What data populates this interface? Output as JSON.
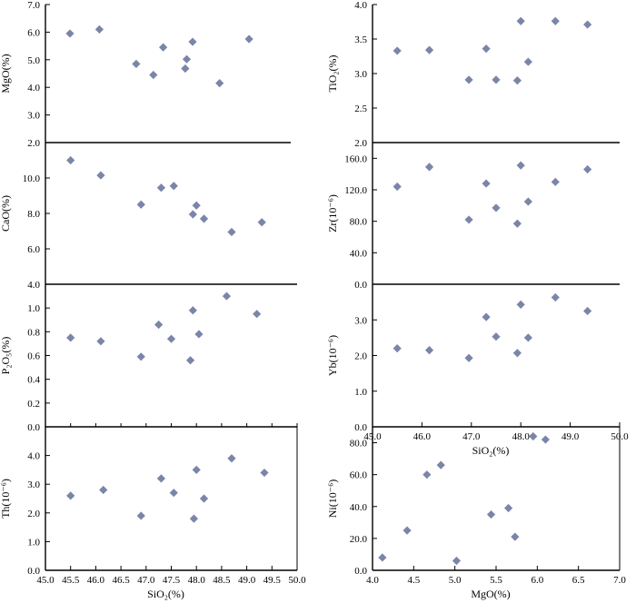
{
  "colors": {
    "marker": "#7a86a8",
    "axis": "#000000",
    "background": "#ffffff"
  },
  "chart_data": [
    {
      "id": "mgo-sio2",
      "type": "scatter",
      "ylabel": "MgO(%)",
      "xlabel": "",
      "xlim": [
        45.0,
        50.0
      ],
      "ylim": [
        2.0,
        7.0
      ],
      "xticks": [],
      "yticks": [
        "2.0",
        "3.0",
        "4.0",
        "5.0",
        "6.0",
        "7.0"
      ],
      "x": [
        45.5,
        46.1,
        46.85,
        47.2,
        47.4,
        47.85,
        47.88,
        48.0,
        48.55,
        49.15
      ],
      "y": [
        5.95,
        6.1,
        4.85,
        4.45,
        5.45,
        4.68,
        5.02,
        5.65,
        4.15,
        5.75
      ]
    },
    {
      "id": "tio2-sio2",
      "type": "scatter",
      "ylabel": "TiO₂(%)",
      "xlabel": "",
      "xlim": [
        45.0,
        50.0
      ],
      "ylim": [
        2.0,
        4.0
      ],
      "xticks": [],
      "yticks": [
        "2.0",
        "2.5",
        "3.0",
        "3.5",
        "4.0"
      ],
      "x": [
        45.5,
        46.15,
        46.95,
        47.3,
        47.5,
        47.93,
        48.0,
        48.15,
        48.7,
        49.35
      ],
      "y": [
        3.33,
        3.34,
        2.91,
        3.36,
        2.91,
        2.9,
        3.76,
        3.17,
        3.76,
        3.71
      ]
    },
    {
      "id": "cao-sio2",
      "type": "scatter",
      "ylabel": "CaO(%)",
      "xlabel": "",
      "xlim": [
        45.0,
        50.0
      ],
      "ylim": [
        4.0,
        12.0
      ],
      "xticks": [],
      "yticks": [
        "4.0",
        "6.0",
        "8.0",
        "10.0"
      ],
      "x": [
        45.5,
        46.1,
        46.9,
        47.3,
        47.55,
        47.93,
        48.0,
        48.15,
        48.7,
        49.3
      ],
      "y": [
        11.0,
        10.15,
        8.5,
        9.45,
        9.55,
        7.95,
        8.45,
        7.7,
        6.95,
        7.5
      ]
    },
    {
      "id": "zr-sio2",
      "type": "scatter",
      "ylabel": "Zr(10⁻⁶)",
      "xlabel": "",
      "xlim": [
        45.0,
        50.0
      ],
      "ylim": [
        0.0,
        180.0
      ],
      "xticks": [],
      "yticks": [
        "0.0",
        "40.0",
        "80.0",
        "120.0",
        "160.0"
      ],
      "x": [
        45.5,
        46.15,
        46.95,
        47.3,
        47.5,
        47.93,
        48.0,
        48.15,
        48.7,
        49.35
      ],
      "y": [
        124,
        149,
        82,
        128,
        97,
        77,
        151,
        105,
        130,
        146
      ]
    },
    {
      "id": "p2o5-sio2",
      "type": "scatter",
      "ylabel": "P₂O₅(%)",
      "xlabel": "",
      "xlim": [
        45.0,
        50.0
      ],
      "ylim": [
        0.0,
        1.2
      ],
      "xticks": [],
      "yticks": [
        "0.0",
        "0.2",
        "0.4",
        "0.6",
        "0.8",
        "1.0"
      ],
      "x": [
        45.5,
        46.1,
        46.9,
        47.25,
        47.5,
        47.88,
        47.93,
        48.05,
        48.6,
        49.2
      ],
      "y": [
        0.75,
        0.72,
        0.59,
        0.86,
        0.74,
        0.56,
        0.98,
        0.78,
        1.1,
        0.95
      ]
    },
    {
      "id": "yb-sio2",
      "type": "scatter",
      "ylabel": "Yb(10⁻⁶)",
      "xlabel": "SiO₂(%)",
      "xlim": [
        45.0,
        50.0
      ],
      "ylim": [
        0.0,
        4.0
      ],
      "xticks": [
        "45.0",
        "46.0",
        "47.0",
        "48.0",
        "49.0",
        "50.0"
      ],
      "yticks": [
        "0.0",
        "1.0",
        "2.0",
        "3.0"
      ],
      "x": [
        45.5,
        46.15,
        46.95,
        47.3,
        47.5,
        47.93,
        48.0,
        48.15,
        48.7,
        49.35
      ],
      "y": [
        2.2,
        2.15,
        1.93,
        3.08,
        2.53,
        2.07,
        3.43,
        2.5,
        3.63,
        3.25
      ]
    },
    {
      "id": "th-sio2",
      "type": "scatter",
      "ylabel": "Th(10⁻⁶)",
      "xlabel": "SiO₂(%)",
      "xlim": [
        45.0,
        50.0
      ],
      "ylim": [
        0.0,
        5.0
      ],
      "xticks": [
        "45.0",
        "45.5",
        "46.0",
        "46.5",
        "47.0",
        "47.5",
        "48.0",
        "48.5",
        "49.0",
        "49.5",
        "50.0"
      ],
      "yticks": [
        "0.0",
        "1.0",
        "2.0",
        "3.0",
        "4.0"
      ],
      "x": [
        45.5,
        46.15,
        46.9,
        47.3,
        47.55,
        47.95,
        48.0,
        48.15,
        48.7,
        49.35
      ],
      "y": [
        2.6,
        2.8,
        1.9,
        3.2,
        2.7,
        1.8,
        3.5,
        2.5,
        3.9,
        3.4
      ]
    },
    {
      "id": "ni-mgo",
      "type": "scatter",
      "ylabel": "Ni(10⁻⁶)",
      "xlabel": "MgO(%)",
      "xlim": [
        4.0,
        7.0
      ],
      "ylim": [
        0.0,
        90.0
      ],
      "xticks": [
        "4.0",
        "4.5",
        "5.0",
        "5.5",
        "6.0",
        "6.5",
        "7.0"
      ],
      "yticks": [
        "0.0",
        "20.0",
        "40.0",
        "60.0",
        "80.0"
      ],
      "x": [
        4.12,
        4.42,
        4.66,
        4.83,
        5.02,
        5.44,
        5.65,
        5.73,
        5.95,
        6.1
      ],
      "y": [
        8,
        25,
        60,
        66,
        6,
        35,
        39,
        21,
        84,
        82
      ]
    }
  ]
}
